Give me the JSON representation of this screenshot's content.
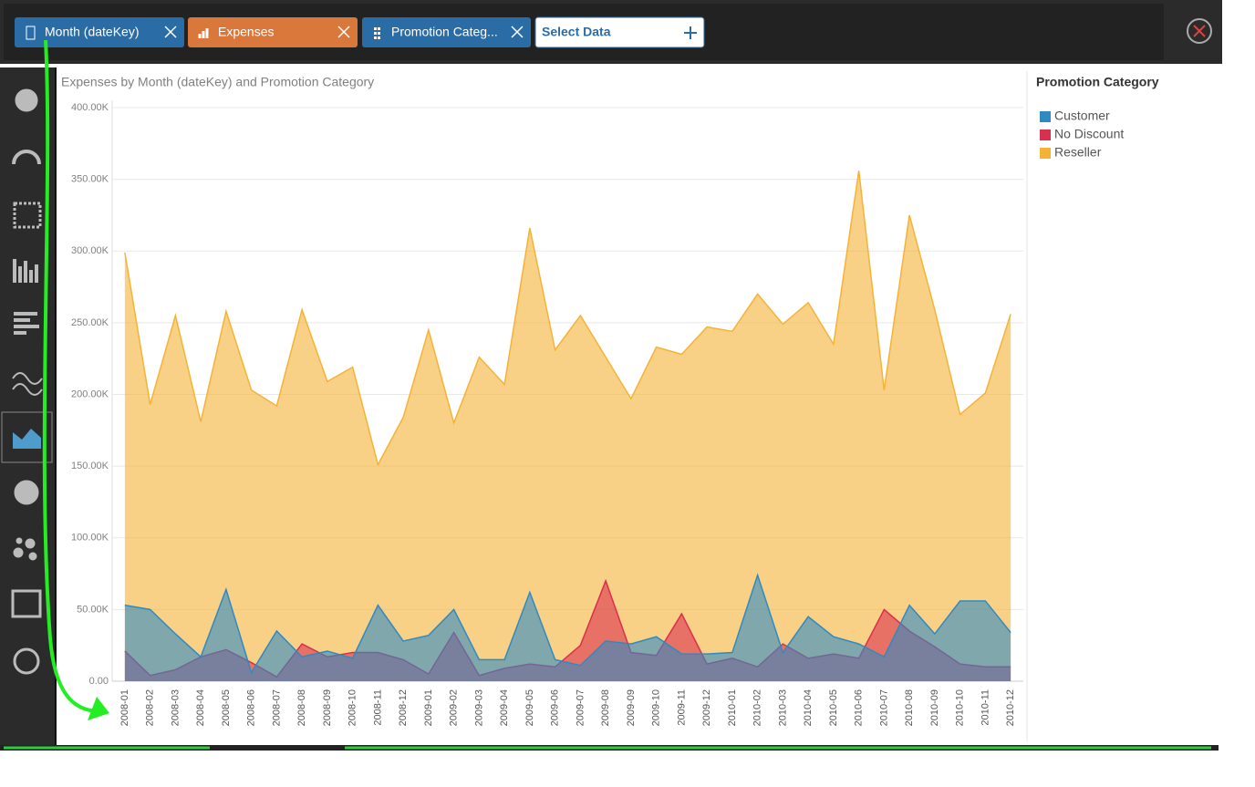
{
  "toolbar": {
    "fields": [
      "Month (dateKey)",
      "Expenses",
      "Promotion Categ...",
      "Select Data"
    ]
  },
  "chart_data": {
    "type": "area",
    "title": "Expenses by Month (dateKey) and Promotion Category",
    "legend_title": "Promotion Category",
    "categories": [
      "2008-01",
      "2008-02",
      "2008-03",
      "2008-04",
      "2008-05",
      "2008-06",
      "2008-07",
      "2008-08",
      "2008-09",
      "2008-10",
      "2008-11",
      "2008-12",
      "2009-01",
      "2009-02",
      "2009-03",
      "2009-04",
      "2009-05",
      "2009-06",
      "2009-07",
      "2009-08",
      "2009-09",
      "2009-10",
      "2009-11",
      "2009-12",
      "2010-01",
      "2010-02",
      "2010-03",
      "2010-04",
      "2010-05",
      "2010-06",
      "2010-07",
      "2010-08",
      "2010-09",
      "2010-10",
      "2010-11",
      "2010-12"
    ],
    "series": [
      {
        "name": "Customer",
        "color": "#2f8ac4",
        "values": [
          53000,
          50000,
          33000,
          17000,
          64000,
          6000,
          35000,
          17000,
          21000,
          16000,
          53000,
          28000,
          32000,
          50000,
          15000,
          15000,
          62000,
          15000,
          11000,
          28000,
          26000,
          31000,
          19000,
          19000,
          20000,
          74000,
          20000,
          45000,
          31000,
          26000,
          17000,
          53000,
          33000,
          56000,
          56000,
          34000
        ]
      },
      {
        "name": "No Discount",
        "color": "#d9304f",
        "values": [
          21000,
          4000,
          8000,
          17000,
          22000,
          13000,
          3000,
          26000,
          17000,
          20000,
          20000,
          15000,
          5000,
          34000,
          4000,
          9000,
          12000,
          10000,
          25000,
          70000,
          20000,
          18000,
          47000,
          12000,
          16000,
          10000,
          26000,
          16000,
          19000,
          16000,
          50000,
          35000,
          24000,
          12000,
          10000,
          10000
        ]
      },
      {
        "name": "Reseller",
        "color": "#f5b335",
        "values": [
          299000,
          193000,
          255000,
          181000,
          258000,
          203000,
          192000,
          259000,
          209000,
          219000,
          151000,
          184000,
          245000,
          180000,
          226000,
          207000,
          316000,
          231000,
          255000,
          226000,
          197000,
          233000,
          228000,
          247000,
          244000,
          270000,
          249000,
          264000,
          235000,
          356000,
          203000,
          325000,
          259000,
          186000,
          201000,
          256000
        ]
      }
    ],
    "ylim": [
      0,
      400000
    ],
    "yticks": [
      {
        "value": 0,
        "label": "0.00"
      },
      {
        "value": 50000,
        "label": "50.00K"
      },
      {
        "value": 100000,
        "label": "100.00K"
      },
      {
        "value": 150000,
        "label": "150.00K"
      },
      {
        "value": 200000,
        "label": "200.00K"
      },
      {
        "value": 250000,
        "label": "250.00K"
      },
      {
        "value": 300000,
        "label": "300.00K"
      },
      {
        "value": 350000,
        "label": "350.00K"
      },
      {
        "value": 400000,
        "label": "400.00K"
      }
    ],
    "grid": true
  }
}
